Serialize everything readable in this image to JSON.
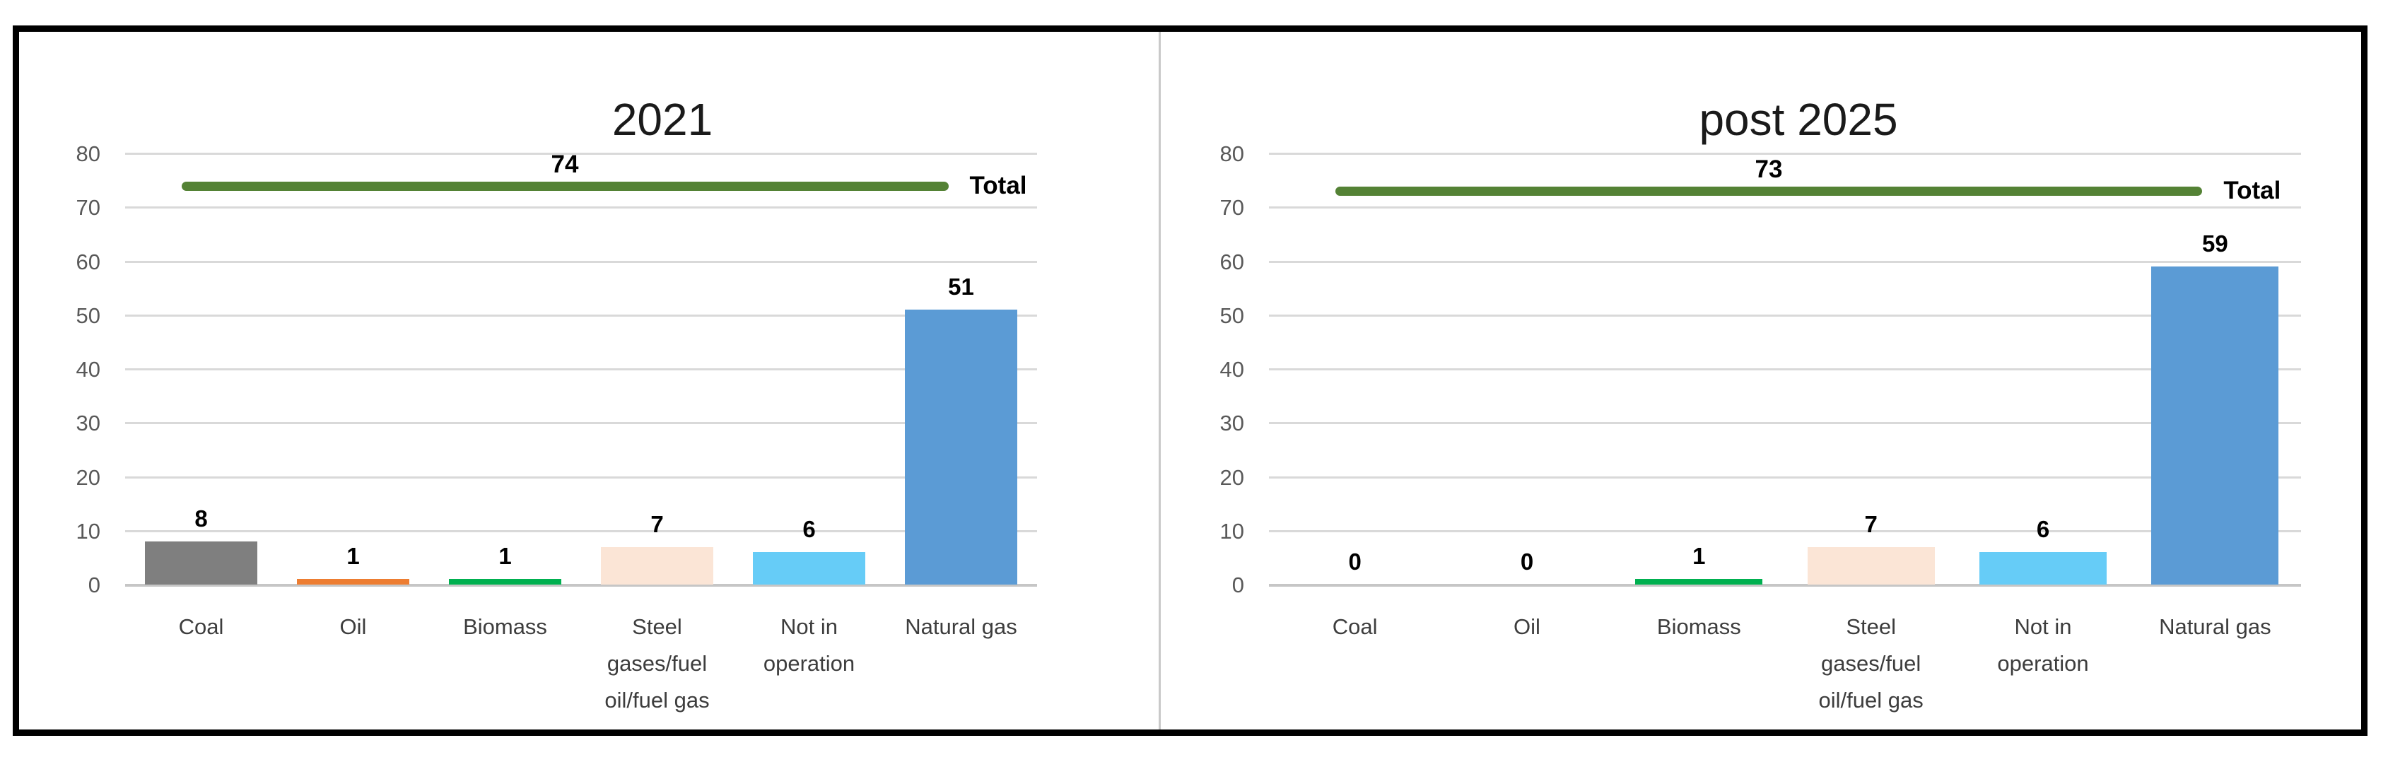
{
  "figure": {
    "background": "#ffffff",
    "frame_border_color": "#000000",
    "divider_color": "#c9c9c9",
    "gridline_color": "#d9d9d9",
    "axis_line_color": "#c6c6c6",
    "tick_label_color": "#595959",
    "category_label_color": "#3d3d3d",
    "title_color": "#1a1a1a",
    "value_label_color": "#000000"
  },
  "chart_data": [
    {
      "type": "bar",
      "title": "2021",
      "categories": [
        "Coal",
        "Oil",
        "Biomass",
        "Steel gases/fuel oil/fuel gas",
        "Not in operation",
        "Natural gas"
      ],
      "category_lines": [
        [
          "Coal"
        ],
        [
          "Oil"
        ],
        [
          "Biomass"
        ],
        [
          "Steel",
          "gases/fuel",
          "oil/fuel gas"
        ],
        [
          "Not in",
          "operation"
        ],
        [
          "Natural gas"
        ]
      ],
      "values": [
        8,
        1,
        1,
        7,
        6,
        51
      ],
      "bar_colors": [
        "#7f7f7f",
        "#ed7d31",
        "#00b050",
        "#fbe5d6",
        "#66ccf7",
        "#5b9bd5"
      ],
      "total_line": {
        "name": "Total",
        "value": 74,
        "color": "#548235"
      },
      "ylim": [
        0,
        80
      ],
      "yticks": [
        0,
        10,
        20,
        30,
        40,
        50,
        60,
        70,
        80
      ],
      "grid": true,
      "legend_position": "line-end"
    },
    {
      "type": "bar",
      "title": "post 2025",
      "categories": [
        "Coal",
        "Oil",
        "Biomass",
        "Steel gases/fuel oil/fuel gas",
        "Not in operation",
        "Natural gas"
      ],
      "category_lines": [
        [
          "Coal"
        ],
        [
          "Oil"
        ],
        [
          "Biomass"
        ],
        [
          "Steel",
          "gases/fuel",
          "oil/fuel gas"
        ],
        [
          "Not in",
          "operation"
        ],
        [
          "Natural gas"
        ]
      ],
      "values": [
        0,
        0,
        1,
        7,
        6,
        59
      ],
      "bar_colors": [
        "#7f7f7f",
        "#ed7d31",
        "#00b050",
        "#fbe5d6",
        "#66ccf7",
        "#5b9bd5"
      ],
      "total_line": {
        "name": "Total",
        "value": 73,
        "color": "#548235"
      },
      "ylim": [
        0,
        80
      ],
      "yticks": [
        0,
        10,
        20,
        30,
        40,
        50,
        60,
        70,
        80
      ],
      "grid": true,
      "legend_position": "line-end"
    }
  ]
}
